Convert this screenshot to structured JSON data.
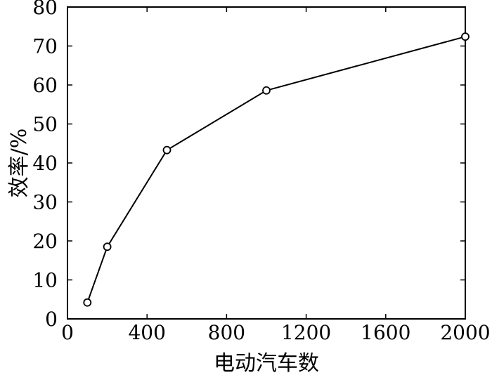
{
  "chart_data": {
    "type": "line",
    "title": "",
    "xlabel": "电动汽车数",
    "ylabel": "效率/%",
    "x_ticks": [
      "0",
      "400",
      "800",
      "1200",
      "1600",
      "2000"
    ],
    "y_ticks": [
      "0",
      "10",
      "20",
      "30",
      "40",
      "50",
      "60",
      "70",
      "80"
    ],
    "xlim": [
      0,
      2000
    ],
    "ylim": [
      0,
      80
    ],
    "grid": false,
    "legend": "none",
    "series": [
      {
        "x": [
          100,
          200,
          500,
          1000,
          2000
        ],
        "y": [
          4.2,
          18.5,
          43.3,
          58.6,
          72.4
        ],
        "marker": "open-circle",
        "color": "#000000"
      }
    ]
  }
}
